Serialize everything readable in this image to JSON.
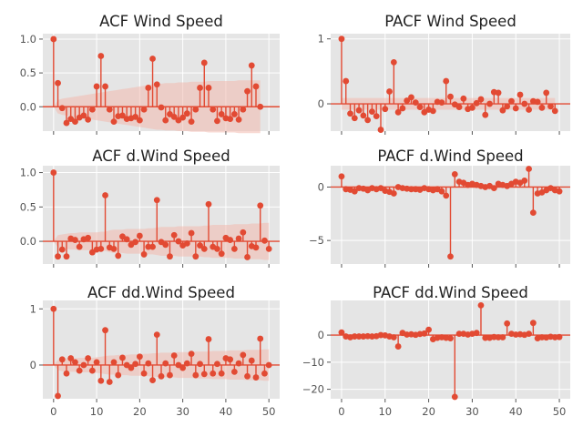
{
  "chart_data": [
    {
      "type": "stem",
      "title": "ACF Wind Speed",
      "xlim": [
        -2.5,
        52.5
      ],
      "ylim": [
        -0.36,
        1.08
      ],
      "xticks": [
        0,
        10,
        20,
        30,
        40,
        50
      ],
      "xtick_labels": [
        "",
        "",
        "",
        "",
        "",
        ""
      ],
      "yticks": [
        1.0,
        0.5,
        0.0
      ],
      "ytick_labels": [
        "1.0",
        "0.5",
        "0.0"
      ],
      "values": [
        1.0,
        0.35,
        -0.02,
        -0.24,
        -0.18,
        -0.22,
        -0.16,
        -0.13,
        -0.19,
        -0.04,
        0.3,
        0.75,
        0.3,
        -0.04,
        -0.22,
        -0.14,
        -0.13,
        -0.18,
        -0.17,
        -0.15,
        -0.2,
        -0.04,
        0.28,
        0.71,
        0.33,
        -0.01,
        -0.2,
        -0.11,
        -0.15,
        -0.2,
        -0.16,
        -0.1,
        -0.22,
        -0.04,
        0.28,
        0.65,
        0.28,
        -0.04,
        -0.21,
        -0.11,
        -0.17,
        -0.18,
        -0.11,
        -0.19,
        -0.04,
        0.23,
        0.61,
        0.3,
        0.0
      ],
      "conf_band": [
        0.0,
        0.1,
        0.12,
        0.13,
        0.14,
        0.15,
        0.16,
        0.17,
        0.18,
        0.19,
        0.2,
        0.21,
        0.22,
        0.23,
        0.24,
        0.25,
        0.26,
        0.27,
        0.28,
        0.29,
        0.3,
        0.31,
        0.32,
        0.33,
        0.34,
        0.34,
        0.35,
        0.35,
        0.35,
        0.36,
        0.36,
        0.36,
        0.37,
        0.37,
        0.37,
        0.37,
        0.38,
        0.38,
        0.38,
        0.38,
        0.38,
        0.38,
        0.38,
        0.39,
        0.39,
        0.39,
        0.39,
        0.39,
        0.39
      ]
    },
    {
      "type": "stem",
      "title": "PACF Wind Speed",
      "xlim": [
        -2.5,
        52.5
      ],
      "ylim": [
        -0.42,
        1.08
      ],
      "xticks": [
        0,
        10,
        20,
        30,
        40,
        50
      ],
      "xtick_labels": [
        "",
        "",
        "",
        "",
        "",
        ""
      ],
      "yticks": [
        1,
        0
      ],
      "ytick_labels": [
        "1",
        "0"
      ],
      "values": [
        1.0,
        0.35,
        -0.15,
        -0.22,
        -0.1,
        -0.18,
        -0.25,
        -0.12,
        -0.19,
        -0.4,
        -0.08,
        0.19,
        0.64,
        -0.13,
        -0.07,
        0.05,
        0.1,
        0.02,
        -0.05,
        -0.13,
        -0.09,
        -0.11,
        0.03,
        0.02,
        0.35,
        0.11,
        -0.01,
        -0.05,
        0.08,
        -0.08,
        -0.06,
        0.01,
        0.07,
        -0.17,
        0.0,
        0.18,
        0.17,
        -0.1,
        -0.04,
        0.04,
        -0.07,
        0.14,
        0.0,
        -0.09,
        0.04,
        0.03,
        -0.06,
        0.17,
        -0.04,
        -0.11
      ],
      "conf_band": 0.09
    },
    {
      "type": "stem",
      "title": "ACF d.Wind Speed",
      "xlim": [
        -2.5,
        52.5
      ],
      "ylim": [
        -0.33,
        1.1
      ],
      "xticks": [
        0,
        10,
        20,
        30,
        40,
        50
      ],
      "xtick_labels": [
        "",
        "",
        "",
        "",
        "",
        ""
      ],
      "yticks": [
        1.0,
        0.5,
        0.0
      ],
      "ytick_labels": [
        "1.0",
        "0.5",
        "0.0"
      ],
      "values": [
        1.0,
        -0.22,
        -0.12,
        -0.22,
        0.04,
        0.02,
        -0.08,
        0.03,
        0.05,
        -0.16,
        -0.12,
        -0.11,
        0.67,
        -0.09,
        -0.11,
        -0.21,
        0.07,
        0.03,
        -0.05,
        -0.01,
        0.08,
        -0.19,
        -0.08,
        -0.08,
        0.6,
        -0.01,
        -0.05,
        -0.22,
        0.09,
        0.0,
        -0.06,
        -0.03,
        0.12,
        -0.22,
        -0.06,
        -0.11,
        0.54,
        -0.08,
        -0.11,
        -0.18,
        0.05,
        0.02,
        -0.11,
        0.04,
        0.13,
        -0.23,
        -0.07,
        -0.09,
        0.52,
        0.01,
        -0.11
      ],
      "conf_band": [
        0.0,
        0.09,
        0.1,
        0.11,
        0.12,
        0.12,
        0.13,
        0.13,
        0.13,
        0.13,
        0.13,
        0.14,
        0.14,
        0.16,
        0.17,
        0.17,
        0.17,
        0.18,
        0.18,
        0.18,
        0.18,
        0.18,
        0.19,
        0.19,
        0.2,
        0.21,
        0.21,
        0.21,
        0.21,
        0.22,
        0.22,
        0.22,
        0.22,
        0.22,
        0.22,
        0.23,
        0.23,
        0.24,
        0.24,
        0.24,
        0.24,
        0.24,
        0.25,
        0.25,
        0.25,
        0.25,
        0.26,
        0.26,
        0.26,
        0.27,
        0.27
      ]
    },
    {
      "type": "stem",
      "title": "PACF d.Wind Speed",
      "xlim": [
        -2.5,
        52.5
      ],
      "ylim": [
        -7.2,
        2.0
      ],
      "xticks": [
        0,
        10,
        20,
        30,
        40,
        50
      ],
      "xtick_labels": [
        "",
        "",
        "",
        "",
        "",
        ""
      ],
      "yticks": [
        0,
        -5
      ],
      "ytick_labels": [
        "0",
        "−5"
      ],
      "values": [
        1.0,
        -0.2,
        -0.25,
        -0.4,
        -0.1,
        -0.15,
        -0.3,
        -0.1,
        -0.2,
        -0.1,
        -0.35,
        -0.45,
        -0.6,
        0.0,
        -0.1,
        -0.15,
        -0.2,
        -0.2,
        -0.25,
        -0.1,
        -0.2,
        -0.3,
        -0.2,
        -0.4,
        -0.8,
        -6.5,
        1.2,
        0.5,
        0.4,
        0.2,
        0.3,
        0.2,
        0.1,
        0.0,
        0.1,
        -0.1,
        0.3,
        0.2,
        0.1,
        0.3,
        0.5,
        0.4,
        0.6,
        1.7,
        -2.4,
        -0.6,
        -0.5,
        -0.3,
        -0.1,
        -0.3,
        -0.4
      ],
      "conf_band": 0.1
    },
    {
      "type": "stem",
      "title": "ACF dd.Wind Speed",
      "xlim": [
        -2.5,
        52.5
      ],
      "ylim": [
        -0.6,
        1.15
      ],
      "xticks": [
        0,
        10,
        20,
        30,
        40,
        50
      ],
      "xtick_labels": [
        "0",
        "10",
        "20",
        "30",
        "40",
        "50"
      ],
      "yticks": [
        1,
        0
      ],
      "ytick_labels": [
        "1",
        "0"
      ],
      "values": [
        1.0,
        -0.55,
        0.1,
        -0.15,
        0.12,
        0.05,
        -0.1,
        0.0,
        0.12,
        -0.1,
        0.05,
        -0.28,
        0.62,
        -0.3,
        0.05,
        -0.18,
        0.13,
        0.0,
        -0.05,
        0.02,
        0.15,
        -0.15,
        0.03,
        -0.27,
        0.54,
        -0.2,
        0.03,
        -0.18,
        0.17,
        0.0,
        -0.05,
        0.03,
        0.2,
        -0.18,
        0.02,
        -0.16,
        0.46,
        -0.15,
        0.02,
        -0.15,
        0.12,
        0.1,
        -0.12,
        0.03,
        0.18,
        -0.2,
        0.08,
        -0.22,
        0.47,
        -0.15,
        0.0
      ],
      "conf_band": [
        0.0,
        0.09,
        0.11,
        0.12,
        0.12,
        0.12,
        0.13,
        0.13,
        0.13,
        0.13,
        0.14,
        0.15,
        0.16,
        0.17,
        0.17,
        0.18,
        0.18,
        0.18,
        0.19,
        0.19,
        0.19,
        0.2,
        0.2,
        0.21,
        0.21,
        0.22,
        0.22,
        0.22,
        0.22,
        0.23,
        0.23,
        0.23,
        0.23,
        0.24,
        0.24,
        0.24,
        0.24,
        0.25,
        0.25,
        0.25,
        0.25,
        0.26,
        0.26,
        0.26,
        0.26,
        0.27,
        0.27,
        0.27,
        0.27,
        0.28,
        0.28
      ]
    },
    {
      "type": "stem",
      "title": "PACF dd.Wind Speed",
      "xlim": [
        -2.5,
        52.5
      ],
      "ylim": [
        -23.5,
        12.8
      ],
      "xticks": [
        0,
        10,
        20,
        30,
        40,
        50
      ],
      "xtick_labels": [
        "0",
        "10",
        "20",
        "30",
        "40",
        "50"
      ],
      "yticks": [
        0,
        -10,
        -20
      ],
      "ytick_labels": [
        "0",
        "−10",
        "−20"
      ],
      "values": [
        1.0,
        -0.5,
        -0.8,
        -0.5,
        -0.5,
        -0.5,
        -0.4,
        -0.5,
        -0.4,
        0.0,
        -0.1,
        -0.5,
        -0.8,
        -4.2,
        0.8,
        0.2,
        0.3,
        0.1,
        0.4,
        0.6,
        2.0,
        -1.5,
        -1.0,
        -0.8,
        -1.0,
        -1.2,
        -22.8,
        0.5,
        0.5,
        0.2,
        0.5,
        0.8,
        11.0,
        -1.0,
        -1.0,
        -0.7,
        -0.8,
        -0.8,
        4.3,
        0.5,
        0.2,
        0.3,
        0.1,
        0.5,
        4.5,
        -1.2,
        -0.8,
        -0.9,
        -0.6,
        -0.8,
        -0.7
      ],
      "conf_band": 0.12
    }
  ]
}
